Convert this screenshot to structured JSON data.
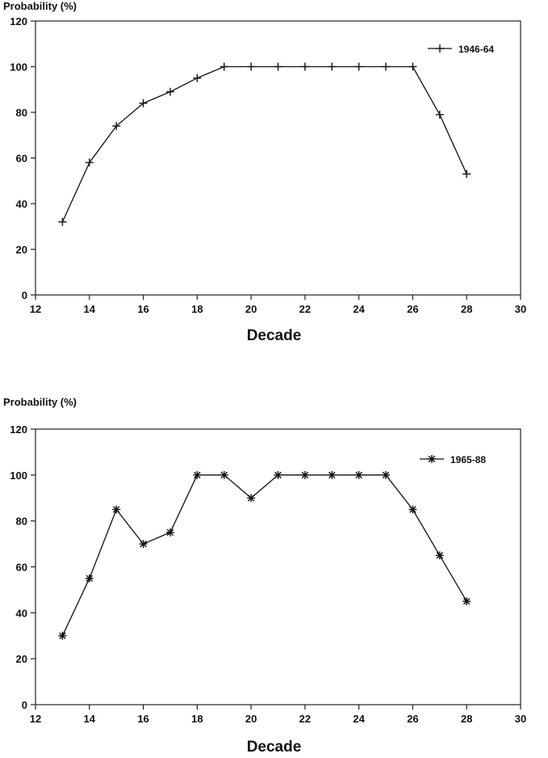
{
  "chart_data": [
    {
      "type": "line",
      "title": "",
      "ylabel": "Probability (%)",
      "xlabel": "Decade",
      "xlim": [
        12,
        30
      ],
      "ylim": [
        0,
        120
      ],
      "xticks": [
        12,
        14,
        16,
        18,
        20,
        22,
        24,
        26,
        28,
        30
      ],
      "yticks": [
        0,
        20,
        40,
        60,
        80,
        100,
        120
      ],
      "grid": false,
      "legend_position": "top-right",
      "marker": "plus",
      "series": [
        {
          "name": "1946-64",
          "x": [
            13,
            14,
            15,
            16,
            17,
            18,
            19,
            20,
            21,
            22,
            23,
            24,
            25,
            26,
            27,
            28
          ],
          "values": [
            32,
            58,
            74,
            84,
            89,
            95,
            100,
            100,
            100,
            100,
            100,
            100,
            100,
            100,
            79,
            53
          ]
        }
      ]
    },
    {
      "type": "line",
      "title": "",
      "ylabel": "Probability (%)",
      "xlabel": "Decade",
      "xlim": [
        12,
        30
      ],
      "ylim": [
        0,
        120
      ],
      "xticks": [
        12,
        14,
        16,
        18,
        20,
        22,
        24,
        26,
        28,
        30
      ],
      "yticks": [
        0,
        20,
        40,
        60,
        80,
        100,
        120
      ],
      "grid": false,
      "legend_position": "top-right",
      "marker": "asterisk",
      "series": [
        {
          "name": "1965-88",
          "x": [
            13,
            14,
            15,
            16,
            17,
            18,
            19,
            20,
            21,
            22,
            23,
            24,
            25,
            26,
            27,
            28
          ],
          "values": [
            30,
            55,
            85,
            70,
            75,
            100,
            100,
            90,
            100,
            100,
            100,
            100,
            100,
            85,
            65,
            45
          ]
        }
      ]
    }
  ]
}
